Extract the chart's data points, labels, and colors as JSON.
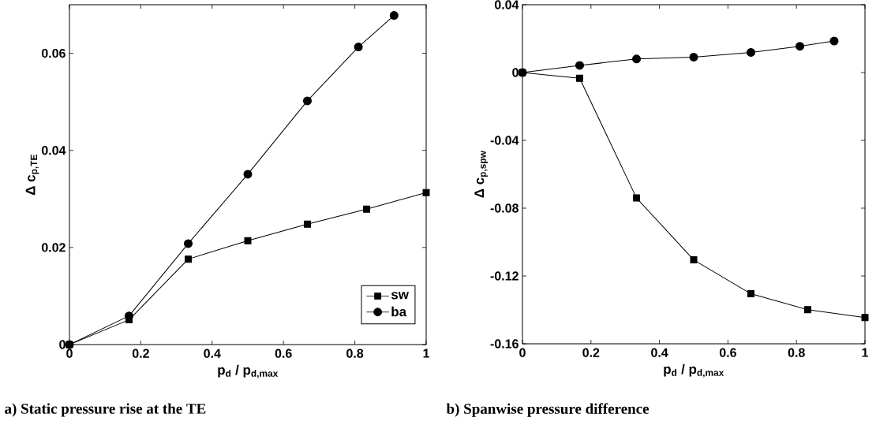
{
  "chart_data": [
    {
      "type": "line",
      "title": "a) Static pressure rise at the TE",
      "xlabel": "p$_{d}$ / p$_{d,max}$",
      "ylabel": "Δ c$_{p,TE}$",
      "xlim": [
        0,
        1
      ],
      "ylim": [
        0,
        0.07
      ],
      "xticks": [
        0,
        0.2,
        0.4,
        0.6,
        0.8,
        1
      ],
      "yticks": [
        0,
        0.02,
        0.04,
        0.06
      ],
      "legend": "bottom right",
      "line_style": "solid",
      "series": [
        {
          "name": "sw",
          "color": "#000000",
          "marker": "square",
          "x": [
            0,
            0.167,
            0.333,
            0.5,
            0.667,
            0.833,
            1
          ],
          "values": [
            0,
            0.0051,
            0.0176,
            0.0214,
            0.0248,
            0.0279,
            0.0313
          ]
        },
        {
          "name": "ba",
          "color": "#000000",
          "marker": "circle",
          "x": [
            0,
            0.167,
            0.333,
            0.5,
            0.667,
            0.81,
            0.91
          ],
          "values": [
            0,
            0.0059,
            0.0208,
            0.0351,
            0.0502,
            0.0613,
            0.0678
          ]
        }
      ]
    },
    {
      "type": "line",
      "title": "b) Spanwise pressure difference",
      "xlabel": "p$_{d}$ / p$_{d,max}$",
      "ylabel": "Δ c$_{p,spw}$",
      "xlim": [
        0,
        1
      ],
      "ylim": [
        -0.16,
        0.04
      ],
      "xticks": [
        0,
        0.2,
        0.4,
        0.6,
        0.8,
        1
      ],
      "yticks": [
        -0.16,
        -0.12,
        -0.08,
        -0.04,
        0,
        0.04
      ],
      "line_style": "solid",
      "series": [
        {
          "color": "#000000",
          "marker": "square",
          "x": [
            0,
            0.167,
            0.333,
            0.5,
            0.667,
            0.833,
            1
          ],
          "values": [
            0,
            -0.0034,
            -0.074,
            -0.1105,
            -0.1305,
            -0.1399,
            -0.1445
          ]
        },
        {
          "color": "#000000",
          "marker": "circle",
          "x": [
            0,
            0.167,
            0.333,
            0.5,
            0.667,
            0.81,
            0.91
          ],
          "values": [
            0,
            0.0042,
            0.008,
            0.0091,
            0.0119,
            0.0155,
            0.0186
          ]
        }
      ]
    }
  ]
}
